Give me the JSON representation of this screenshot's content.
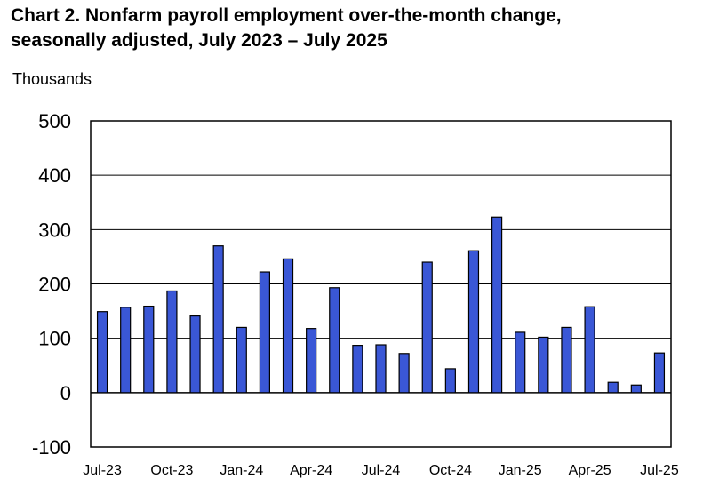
{
  "title_lines": [
    "Chart 2. Nonfarm payroll employment over-the-month change,",
    "seasonally adjusted, July 2023 – July 2025"
  ],
  "units_label": "Thousands",
  "colors": {
    "bar_fill": "#3a57d6",
    "bar_stroke": "#000000",
    "grid": "#000000"
  },
  "chart_data": {
    "type": "bar",
    "title": "Chart 2. Nonfarm payroll employment over-the-month change, seasonally adjusted, July 2023 – July 2025",
    "ylabel": "Thousands",
    "xlabel": "",
    "ylim": [
      -100,
      500
    ],
    "yticks": [
      -100,
      0,
      100,
      200,
      300,
      400,
      500
    ],
    "grid": true,
    "categories": [
      "Jul-23",
      "Aug-23",
      "Sep-23",
      "Oct-23",
      "Nov-23",
      "Dec-23",
      "Jan-24",
      "Feb-24",
      "Mar-24",
      "Apr-24",
      "May-24",
      "Jun-24",
      "Jul-24",
      "Aug-24",
      "Sep-24",
      "Oct-24",
      "Nov-24",
      "Dec-24",
      "Jan-25",
      "Feb-25",
      "Mar-25",
      "Apr-25",
      "May-25",
      "Jun-25",
      "Jul-25"
    ],
    "tick_labels": [
      {
        "index": 0,
        "label": "Jul-23"
      },
      {
        "index": 3,
        "label": "Oct-23"
      },
      {
        "index": 6,
        "label": "Jan-24"
      },
      {
        "index": 9,
        "label": "Apr-24"
      },
      {
        "index": 12,
        "label": "Jul-24"
      },
      {
        "index": 15,
        "label": "Oct-24"
      },
      {
        "index": 18,
        "label": "Jan-25"
      },
      {
        "index": 21,
        "label": "Apr-25"
      },
      {
        "index": 24,
        "label": "Jul-25"
      }
    ],
    "values": [
      149,
      157,
      159,
      187,
      141,
      270,
      120,
      222,
      246,
      118,
      193,
      87,
      88,
      72,
      240,
      44,
      261,
      323,
      111,
      102,
      120,
      158,
      19,
      14,
      73
    ]
  }
}
